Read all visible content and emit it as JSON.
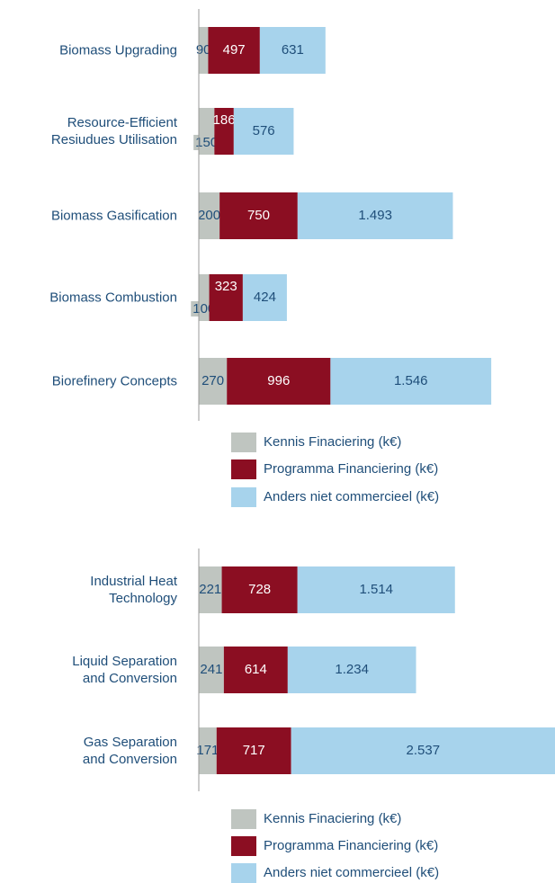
{
  "chart_data": [
    {
      "type": "stacked-bar-horizontal",
      "categories": [
        "Biomass Upgrading",
        "Resource-Efficient\nResiudues Utilisation",
        "Biomass Gasification",
        "Biomass Combustion",
        "Biorefinery  Concepts"
      ],
      "xlim": [
        0,
        3425
      ],
      "series": [
        {
          "name": "Kennis Finaciering (k€)",
          "color": "#bfc5c0",
          "values": [
            90,
            150,
            200,
            100,
            270
          ]
        },
        {
          "name": "Programma Financiering (k€)",
          "color": "#8b0e22",
          "values": [
            497,
            186,
            750,
            323,
            996
          ]
        },
        {
          "name": "Anders niet commercieel (k€)",
          "color": "#a7d3ec",
          "values": [
            631,
            576,
            1493,
            424,
            1546
          ],
          "value_labels": [
            "631",
            "576",
            "1.493",
            "424",
            "1.546"
          ]
        }
      ]
    },
    {
      "type": "stacked-bar-horizontal",
      "categories": [
        "Industrial Heat\nTechnology",
        "Liquid Separation\nand Conversion",
        "Gas Separation\nand Conversion"
      ],
      "xlim": [
        0,
        3425
      ],
      "series": [
        {
          "name": "Kennis Finaciering (k€)",
          "color": "#bfc5c0",
          "values": [
            221,
            241,
            171
          ]
        },
        {
          "name": "Programma Financiering (k€)",
          "color": "#8b0e22",
          "values": [
            728,
            614,
            717
          ]
        },
        {
          "name": "Anders niet commercieel (k€)",
          "color": "#a7d3ec",
          "values": [
            1514,
            1234,
            2537
          ],
          "value_labels": [
            "1.514",
            "1.234",
            "2.537"
          ]
        }
      ]
    }
  ]
}
